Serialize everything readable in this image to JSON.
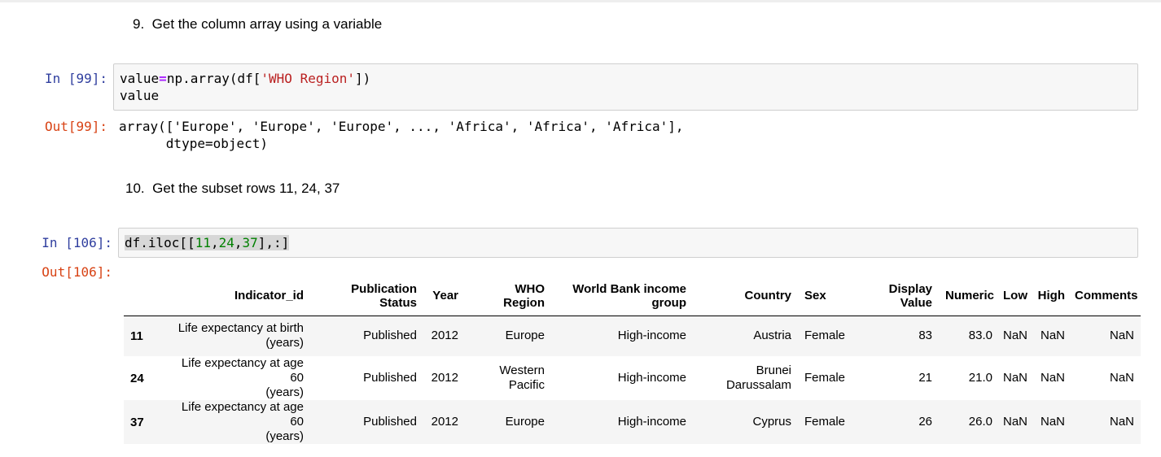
{
  "cells": {
    "md9": {
      "num": "9.",
      "text": "Get the column array using a variable"
    },
    "in99": {
      "prompt": "In [99]:",
      "line1": {
        "a": "value",
        "op": "=",
        "b": "np.array(df[",
        "str": "'WHO Region'",
        "c": "])"
      },
      "line2": "value"
    },
    "out99": {
      "prompt": "Out[99]:",
      "line1": "array(['Europe', 'Europe', 'Europe', ..., 'Africa', 'Africa', 'Africa'],",
      "line2": "      dtype=object)"
    },
    "md10": {
      "num": "10.",
      "text": "Get the subset rows 11, 24, 37"
    },
    "in106": {
      "prompt": "In [106]:",
      "code": {
        "a": "df.iloc[[",
        "n1": "11",
        "c1": ",",
        "n2": "24",
        "c2": ",",
        "n3": "37",
        "b": "],:]"
      }
    },
    "out106": {
      "prompt": "Out[106]:"
    }
  },
  "table": {
    "columns": [
      {
        "l1": "",
        "l2": ""
      },
      {
        "l1": "",
        "l2": "Indicator_id"
      },
      {
        "l1": "Publication",
        "l2": "Status"
      },
      {
        "l1": "",
        "l2": "Year"
      },
      {
        "l1": "WHO",
        "l2": "Region"
      },
      {
        "l1": "World Bank income",
        "l2": "group"
      },
      {
        "l1": "",
        "l2": "Country"
      },
      {
        "l1": "",
        "l2": "Sex"
      },
      {
        "l1": "Display",
        "l2": "Value"
      },
      {
        "l1": "",
        "l2": "Numeric"
      },
      {
        "l1": "",
        "l2": "Low"
      },
      {
        "l1": "",
        "l2": "High"
      },
      {
        "l1": "",
        "l2": "Comments"
      }
    ],
    "rows": [
      {
        "index": "11",
        "indicator_l1": "Life expectancy at birth",
        "indicator_l2": "(years)",
        "status": "Published",
        "year": "2012",
        "region_l1": "",
        "region_l2": "Europe",
        "income": "High-income",
        "country_l1": "",
        "country_l2": "Austria",
        "sex": "Female",
        "display": "83",
        "numeric": "83.0",
        "low": "NaN",
        "high": "NaN",
        "comments": "NaN"
      },
      {
        "index": "24",
        "indicator_l1": "Life expectancy at age 60",
        "indicator_l2": "(years)",
        "status": "Published",
        "year": "2012",
        "region_l1": "Western",
        "region_l2": "Pacific",
        "income": "High-income",
        "country_l1": "Brunei",
        "country_l2": "Darussalam",
        "sex": "Female",
        "display": "21",
        "numeric": "21.0",
        "low": "NaN",
        "high": "NaN",
        "comments": "NaN"
      },
      {
        "index": "37",
        "indicator_l1": "Life expectancy at age 60",
        "indicator_l2": "(years)",
        "status": "Published",
        "year": "2012",
        "region_l1": "",
        "region_l2": "Europe",
        "income": "High-income",
        "country_l1": "",
        "country_l2": "Cyprus",
        "sex": "Female",
        "display": "26",
        "numeric": "26.0",
        "low": "NaN",
        "high": "NaN",
        "comments": "NaN"
      }
    ]
  }
}
